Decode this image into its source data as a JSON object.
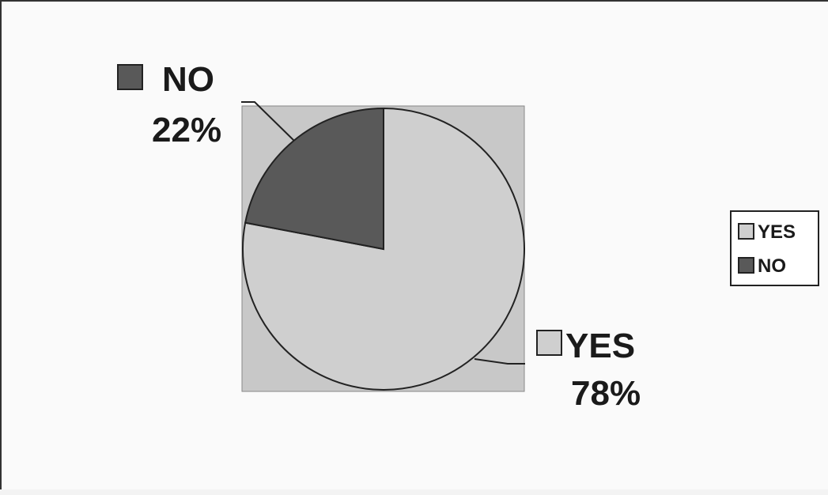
{
  "chart_data": {
    "type": "pie",
    "title": "",
    "categories": [
      "YES",
      "NO"
    ],
    "values": [
      78,
      22
    ],
    "unit": "%",
    "slice_labels": [
      {
        "name": "YES",
        "percent": "78%"
      },
      {
        "name": "NO",
        "percent": "22%"
      }
    ],
    "colors": {
      "YES": "#cfcfcf",
      "NO": "#595959",
      "plot_area": "#c8c8c8",
      "outline": "#222222"
    },
    "legend": {
      "position": "right",
      "entries": [
        "YES",
        "NO"
      ]
    },
    "start_angle_deg": 0,
    "direction": "clockwise"
  }
}
